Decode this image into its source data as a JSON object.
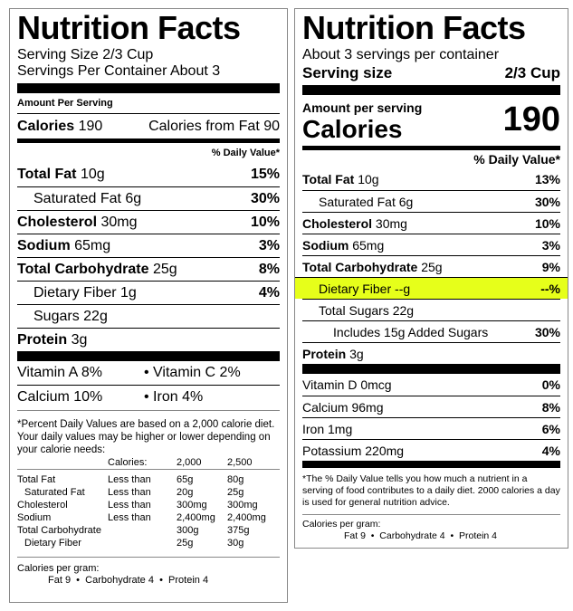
{
  "old_label": {
    "title": "Nutrition Facts",
    "serving_size": "Serving Size 2/3 Cup",
    "servings_per_container": "Servings Per Container About 3",
    "amount_per_serving": "Amount Per Serving",
    "calories_label": "Calories",
    "calories_value": "190",
    "calories_from_fat": "Calories from Fat 90",
    "daily_value_header": "% Daily Value*",
    "nutrients": [
      {
        "name": "Total Fat",
        "amount": "10g",
        "dv": "15%"
      },
      {
        "name": "Saturated Fat",
        "amount": "6g",
        "dv": "30%"
      },
      {
        "name": "Cholesterol",
        "amount": "30mg",
        "dv": "10%"
      },
      {
        "name": "Sodium",
        "amount": "65mg",
        "dv": "3%"
      },
      {
        "name": "Total Carbohydrate",
        "amount": "25g",
        "dv": "8%"
      },
      {
        "name": "Dietary Fiber",
        "amount": "1g",
        "dv": "4%"
      },
      {
        "name": "Sugars",
        "amount": "22g",
        "dv": ""
      },
      {
        "name": "Protein",
        "amount": "3g",
        "dv": ""
      }
    ],
    "vitamins": [
      [
        "Vitamin A 8%",
        "• Vitamin C 2%"
      ],
      [
        "Calcium 10%",
        "• Iron 4%"
      ]
    ],
    "footnote": "*Percent Daily Values are based on a 2,000 calorie diet. Your daily values may be higher or lower depending on your calorie needs:",
    "dv_table": {
      "header": [
        "",
        "Calories:",
        "2,000",
        "2,500"
      ],
      "rows": [
        [
          "Total Fat",
          "Less than",
          "65g",
          "80g"
        ],
        [
          "Saturated Fat",
          "Less than",
          "20g",
          "25g"
        ],
        [
          "Cholesterol",
          "Less than",
          "300mg",
          "300mg"
        ],
        [
          "Sodium",
          "Less than",
          "2,400mg",
          "2,400mg"
        ],
        [
          "Total Carbohydrate",
          "",
          "300g",
          "375g"
        ],
        [
          "Dietary Fiber",
          "",
          "25g",
          "30g"
        ]
      ]
    },
    "calories_per_gram": "Calories per gram:",
    "calories_per_gram_values": "Fat 9  •  Carbohydrate 4  •  Protein 4"
  },
  "new_label": {
    "title": "Nutrition Facts",
    "servings_per_container": "About 3 servings per container",
    "serving_size_label": "Serving size",
    "serving_size_value": "2/3 Cup",
    "amount_per_serving": "Amount per serving",
    "calories_label": "Calories",
    "calories_value": "190",
    "daily_value_header": "% Daily Value*",
    "nutrients": [
      {
        "name": "Total Fat",
        "amount": "10g",
        "dv": "13%"
      },
      {
        "name": "Saturated Fat",
        "amount": "6g",
        "dv": "30%"
      },
      {
        "name": "Cholesterol",
        "amount": "30mg",
        "dv": "10%"
      },
      {
        "name": "Sodium",
        "amount": "65mg",
        "dv": "3%"
      },
      {
        "name": "Total Carbohydrate",
        "amount": "25g",
        "dv": "9%"
      },
      {
        "name": "Dietary Fiber",
        "amount": "--g",
        "dv": "--%"
      },
      {
        "name": "Total Sugars",
        "amount": "22g",
        "dv": ""
      },
      {
        "name": "Includes 15g Added Sugars",
        "amount": "",
        "dv": "30%"
      },
      {
        "name": "Protein",
        "amount": "3g",
        "dv": ""
      }
    ],
    "minerals": [
      {
        "name": "Vitamin D",
        "amount": "0mcg",
        "dv": "0%"
      },
      {
        "name": "Calcium",
        "amount": "96mg",
        "dv": "8%"
      },
      {
        "name": "Iron",
        "amount": "1mg",
        "dv": "6%"
      },
      {
        "name": "Potassium",
        "amount": "220mg",
        "dv": "4%"
      }
    ],
    "highlight_color": "#e6ff1a",
    "footnote": "*The % Daily Value tells you how much a nutrient in a serving of food contributes to a daily diet. 2000 calories a day is used for general nutrition advice.",
    "calories_per_gram": "Calories per gram:",
    "calories_per_gram_values": "Fat 9  •  Carbohydrate 4  •  Protein 4"
  }
}
